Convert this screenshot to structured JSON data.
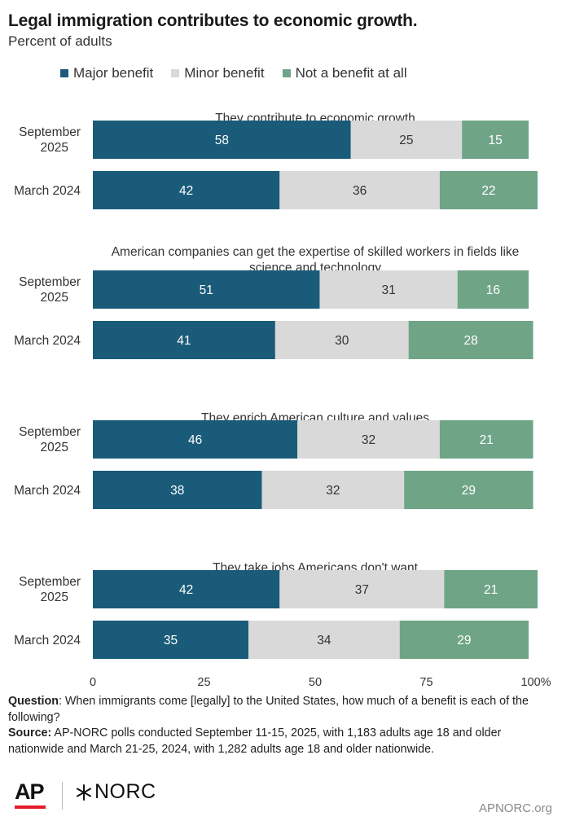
{
  "header": {
    "title": "Legal immigration contributes to economic growth.",
    "subtitle": "Percent of adults"
  },
  "legend": [
    {
      "label": "Major benefit",
      "color": "#1a5b7a"
    },
    {
      "label": "Minor benefit",
      "color": "#d9d9d9"
    },
    {
      "label": "Not a benefit at all",
      "color": "#6fa487"
    }
  ],
  "chart_data": {
    "type": "bar",
    "orientation": "horizontal",
    "stacked": true,
    "title": "Legal immigration contributes to economic growth.",
    "subtitle": "Percent of adults",
    "xlim": [
      0,
      100
    ],
    "xticks": [
      "0",
      "25",
      "50",
      "75",
      "100%"
    ],
    "series_names": [
      "Major benefit",
      "Minor benefit",
      "Not a benefit at all"
    ],
    "colors": [
      "#1a5b7a",
      "#d9d9d9",
      "#6fa487"
    ],
    "groups": [
      {
        "label": "They contribute to economic growth",
        "rows": [
          {
            "label": "September 2025",
            "values": [
              58,
              25,
              15
            ]
          },
          {
            "label": "March 2024",
            "values": [
              42,
              36,
              22
            ]
          }
        ]
      },
      {
        "label": "American companies can get the expertise of skilled workers in fields like science and technology",
        "rows": [
          {
            "label": "September 2025",
            "values": [
              51,
              31,
              16
            ]
          },
          {
            "label": "March 2024",
            "values": [
              41,
              30,
              28
            ]
          }
        ]
      },
      {
        "label": "They enrich American culture and values",
        "rows": [
          {
            "label": "September 2025",
            "values": [
              46,
              32,
              21
            ]
          },
          {
            "label": "March 2024",
            "values": [
              38,
              32,
              29
            ]
          }
        ]
      },
      {
        "label": "They take jobs Americans don't want",
        "rows": [
          {
            "label": "September 2025",
            "values": [
              42,
              37,
              21
            ]
          },
          {
            "label": "March 2024",
            "values": [
              35,
              34,
              29
            ]
          }
        ]
      }
    ]
  },
  "footnote": {
    "question_label": "Question",
    "question_text": ": When immigrants come [legally] to the United States, how much of a benefit is each of the following?",
    "source_label": "Source:",
    "source_text": " AP-NORC polls conducted September 11-15, 2025, with 1,183 adults age 18 and older nationwide and March 21-25, 2024, with 1,282 adults age 18 and older nationwide."
  },
  "branding": {
    "ap_logo": "AP",
    "norc_logo": "NORC",
    "site": "APNORC.org"
  }
}
